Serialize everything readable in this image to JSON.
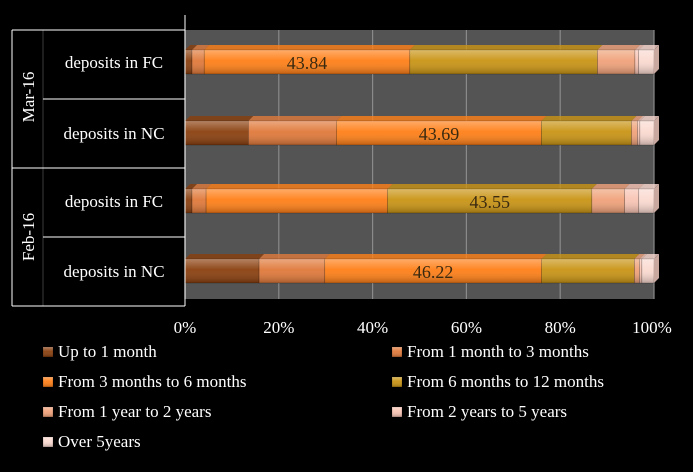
{
  "chart_data": {
    "type": "bar",
    "orientation": "horizontal",
    "stacked": "percent",
    "groups": [
      {
        "label": "Mar-16",
        "rows": [
          0,
          1
        ]
      },
      {
        "label": "Feb-16",
        "rows": [
          2,
          3
        ]
      }
    ],
    "categories": [
      "deposits in FC",
      "deposits in NC",
      "deposits in FC",
      "deposits in NC"
    ],
    "series": [
      {
        "name": "Up to 1 month",
        "color": "#8a3f0e",
        "values": [
          1.5,
          13.5,
          1.5,
          15.8
        ]
      },
      {
        "name": "From 1 month to 3 months",
        "color": "#e0793a",
        "values": [
          2.6,
          18.8,
          3.0,
          14.0
        ]
      },
      {
        "name": "From 3 months to 6 months",
        "color": "#ff7f17",
        "values": [
          43.84,
          43.69,
          38.7,
          46.22
        ]
      },
      {
        "name": "From 6 months to 12 months",
        "color": "#c99414",
        "values": [
          40.0,
          19.2,
          43.55,
          19.8
        ]
      },
      {
        "name": "From 1 year to 2 years",
        "color": "#f0a27a",
        "values": [
          8.0,
          1.3,
          7.0,
          1.1
        ]
      },
      {
        "name": "From 2 years to 5 years",
        "color": "#f8c4b4",
        "values": [
          0.8,
          0.5,
          3.0,
          0.5
        ]
      },
      {
        "name": "Over 5years",
        "color": "#fadad0",
        "values": [
          3.26,
          3.01,
          3.25,
          2.58
        ]
      }
    ],
    "data_labels": [
      {
        "row": 0,
        "series": 2,
        "text": "43.84"
      },
      {
        "row": 1,
        "series": 2,
        "text": "43.69"
      },
      {
        "row": 2,
        "series": 3,
        "text": "43.55"
      },
      {
        "row": 3,
        "series": 2,
        "text": "46.22"
      }
    ],
    "x_ticks": [
      "0%",
      "20%",
      "40%",
      "60%",
      "80%",
      "100%"
    ],
    "xlim": [
      0,
      100
    ],
    "grid": true,
    "legend_position": "bottom",
    "title": "",
    "xlabel": "",
    "ylabel": ""
  }
}
